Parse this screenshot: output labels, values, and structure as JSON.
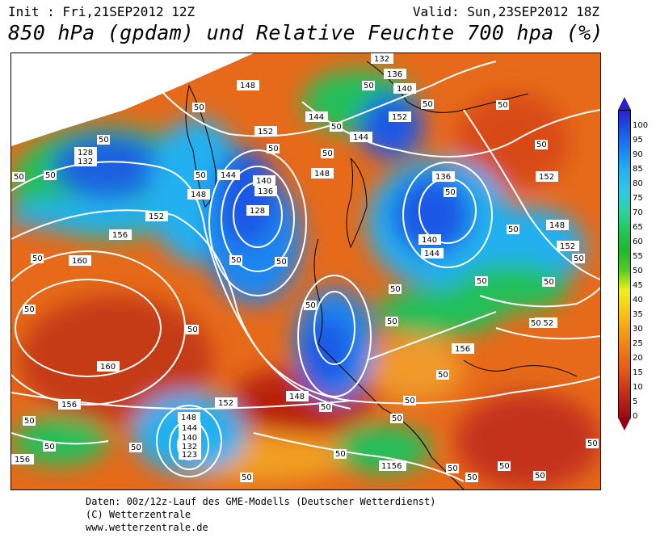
{
  "header": {
    "init": "Init : Fri,21SEP2012 12Z",
    "valid": "Valid: Sun,23SEP2012 18Z",
    "title": "850 hPa (gpdam) und Relative Feuchte 700 hpa (%)"
  },
  "legend": {
    "ticks": [
      "100",
      "95",
      "90",
      "85",
      "80",
      "75",
      "70",
      "65",
      "60",
      "55",
      "50",
      "45",
      "40",
      "35",
      "30",
      "25",
      "20",
      "15",
      "10",
      "5",
      "0"
    ]
  },
  "map": {
    "contour_color": "#ffffff",
    "height_labels": [
      "132",
      "136",
      "140",
      "148",
      "152",
      "144",
      "128",
      "156",
      "160",
      "144",
      "148",
      "152",
      "136",
      "140",
      "144",
      "148",
      "152",
      "160",
      "156",
      "152",
      "148",
      "144",
      "140",
      "132",
      "123",
      "156",
      "1156",
      "136",
      "140",
      "144",
      "152",
      "148",
      "152",
      "156",
      "152",
      "148",
      "128",
      "132"
    ],
    "humidity_labels": [
      "50",
      "50",
      "50",
      "50",
      "50",
      "50",
      "50",
      "50",
      "50",
      "50",
      "50",
      "50",
      "50",
      "50",
      "50",
      "50",
      "50",
      "50",
      "50",
      "50",
      "50",
      "50",
      "50",
      "50",
      "50",
      "50",
      "50",
      "50",
      "50",
      "50",
      "50",
      "50",
      "50",
      "50",
      "50",
      "50",
      "50",
      "50",
      "50",
      "50"
    ]
  },
  "footer": {
    "line1": "Daten: 00z/12z-Lauf des GME-Modells (Deutscher Wetterdienst)",
    "line2": "(C) Wetterzentrale",
    "line3": "www.wetterzentrale.de"
  }
}
